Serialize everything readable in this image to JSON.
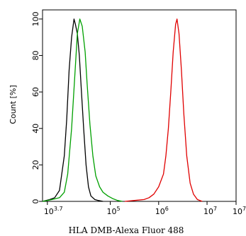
{
  "chart_data": {
    "type": "line",
    "title": "",
    "xlabel": "HLA DMB-Alexa Fluor 488",
    "ylabel": "Count [%]",
    "x_scale": "log10",
    "xlim_exp": [
      3.6,
      7.6
    ],
    "ylim": [
      0,
      105
    ],
    "grid": false,
    "legend": "none",
    "x_ticks": [
      {
        "base": "10",
        "exp": "3.7",
        "value": 3.7
      },
      {
        "base": "10",
        "exp": "5",
        "value": 5
      },
      {
        "base": "10",
        "exp": "6",
        "value": 6
      },
      {
        "base": "10",
        "exp": "7",
        "value": 7
      },
      {
        "base": "10",
        "exp": "7.6",
        "value": 7.6
      }
    ],
    "y_ticks": [
      "0",
      "20",
      "40",
      "60",
      "80",
      "100"
    ],
    "series": [
      {
        "color": "#000000",
        "x_exp": [
          3.6,
          3.75,
          3.85,
          3.95,
          4.05,
          4.1,
          4.15,
          4.2,
          4.25,
          4.28,
          4.32,
          4.36,
          4.4,
          4.45,
          4.5,
          4.55,
          4.6,
          4.68,
          4.75,
          4.85
        ],
        "values": [
          0,
          1,
          2,
          6,
          25,
          45,
          72,
          90,
          100,
          97,
          92,
          80,
          62,
          40,
          20,
          8,
          3,
          1,
          0.5,
          0
        ]
      },
      {
        "color": "#00a000",
        "x_exp": [
          3.6,
          3.8,
          3.95,
          4.05,
          4.12,
          4.2,
          4.27,
          4.32,
          4.37,
          4.42,
          4.48,
          4.52,
          4.58,
          4.64,
          4.7,
          4.78,
          4.85,
          4.95,
          5.05,
          5.15,
          5.25
        ],
        "values": [
          0,
          1,
          2,
          5,
          15,
          40,
          70,
          92,
          100,
          96,
          82,
          65,
          42,
          25,
          14,
          8,
          5,
          3,
          1.5,
          0.5,
          0
        ]
      },
      {
        "color": "#e00000",
        "x_exp": [
          5.3,
          5.5,
          5.7,
          5.8,
          5.9,
          6.0,
          6.1,
          6.15,
          6.2,
          6.25,
          6.3,
          6.35,
          6.38,
          6.42,
          6.47,
          6.52,
          6.58,
          6.65,
          6.72,
          6.8,
          6.9
        ],
        "values": [
          0,
          0.5,
          1,
          2,
          4,
          8,
          15,
          25,
          40,
          60,
          82,
          97,
          100,
          92,
          72,
          48,
          25,
          10,
          4,
          1,
          0
        ]
      }
    ]
  }
}
